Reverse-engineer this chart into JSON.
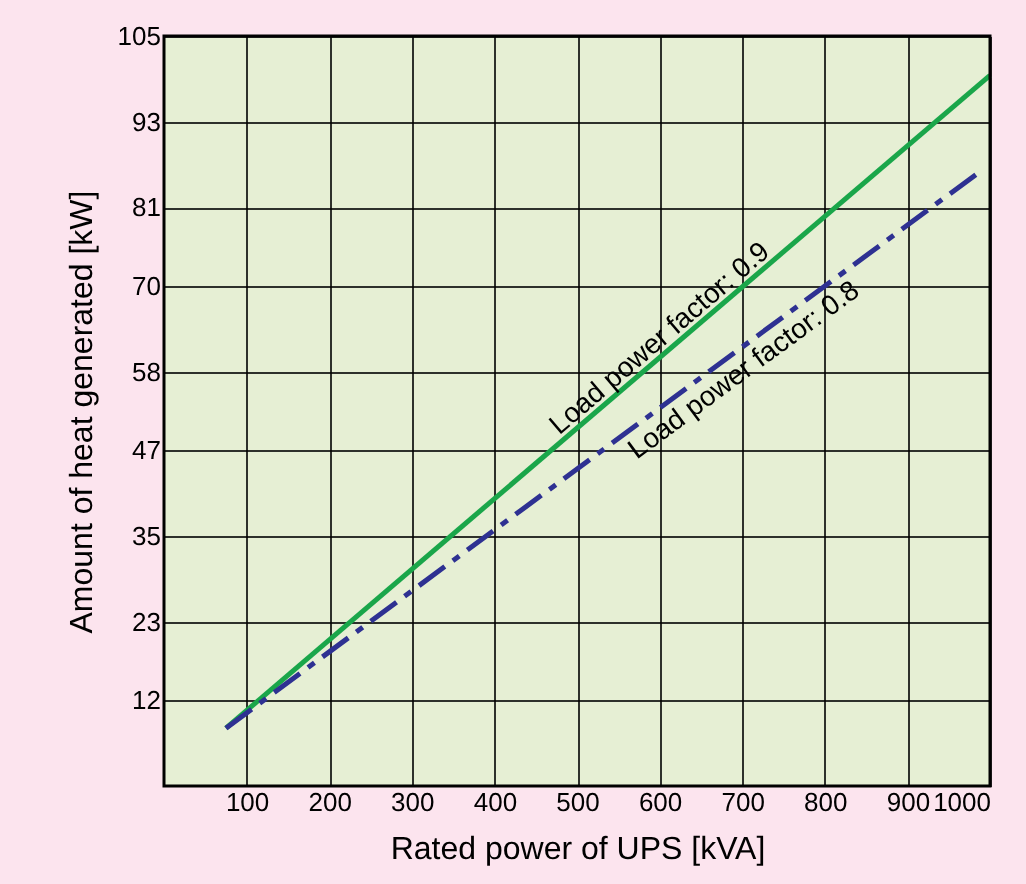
{
  "chart_data": {
    "type": "line",
    "xlabel": "Rated power of UPS [kVA]",
    "ylabel": "Amount of heat generated [kW]",
    "series": [
      {
        "name": "Load power factor: 0.9",
        "color": "#1aa64a",
        "x": [
          75,
          1000
        ],
        "values": [
          8.1,
          99.5
        ],
        "line_style": "solid"
      },
      {
        "name": "Load power factor: 0.8",
        "color": "#2e3192",
        "x": [
          75,
          990
        ],
        "values": [
          8.1,
          86.2
        ],
        "line_style": "dashed"
      }
    ],
    "xlim": [
      0,
      1000
    ],
    "xticks": [
      100,
      200,
      300,
      400,
      500,
      600,
      700,
      800,
      900,
      1000
    ],
    "ylim": [
      0,
      105
    ],
    "yticks": [
      12,
      23,
      35,
      47,
      58,
      70,
      81,
      93,
      105
    ],
    "grid": true,
    "marker": "none"
  }
}
